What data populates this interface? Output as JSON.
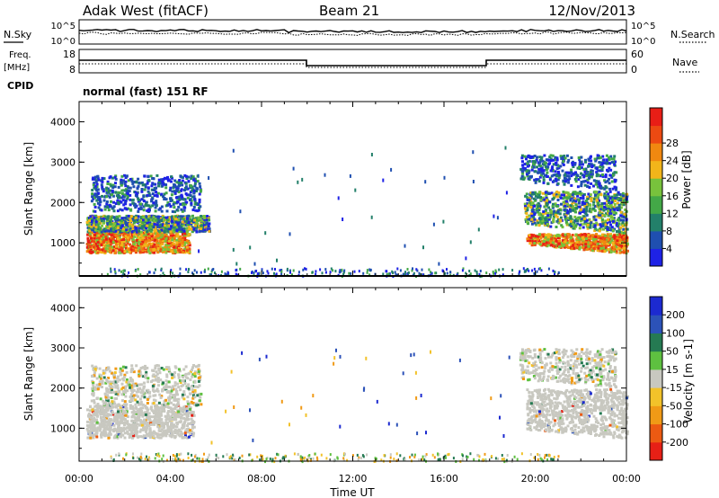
{
  "header": {
    "station": "Adak West (fitACF)",
    "beam": "Beam 21",
    "date": "12/Nov/2013"
  },
  "noise_panel": {
    "left_label": "N.Sky",
    "right_label": "N.Search",
    "left_ticks": [
      "10^5",
      "10^0"
    ],
    "right_ticks": [
      "10^5",
      "10^0"
    ]
  },
  "freq_panel": {
    "left_label_top": "Freq.",
    "left_label_unit": "[MHz]",
    "left_ticks": [
      "18",
      "8"
    ],
    "right_label": "Nave",
    "right_ticks": [
      "60",
      "0"
    ],
    "cpid_label": "CPID",
    "cpid_text": "normal (fast) 151 RF"
  },
  "chart_data": [
    {
      "type": "heatmap",
      "name": "power",
      "ylabel": "Slant Range [km]",
      "yticks": [
        "1000",
        "2000",
        "3000",
        "4000"
      ],
      "ylim": [
        180,
        4500
      ],
      "xlim_hours": [
        0,
        24
      ],
      "colorbar": {
        "label": "Power [dB]",
        "ticks": [
          "4",
          "8",
          "12",
          "16",
          "20",
          "24",
          "28"
        ],
        "colors": [
          "#1e22e6",
          "#1f4fb0",
          "#23806a",
          "#43a847",
          "#78c23c",
          "#f2b51a",
          "#f08810",
          "#ec4a12",
          "#e81e16"
        ]
      },
      "regions": [
        {
          "t0": 0.3,
          "t1": 4.8,
          "r0": 780,
          "r1": 1300,
          "level": "high"
        },
        {
          "t0": 0.3,
          "t1": 5.7,
          "r0": 1300,
          "r1": 1700,
          "level": "mid"
        },
        {
          "t0": 0.5,
          "t1": 5.3,
          "r0": 1800,
          "r1": 2700,
          "level": "low"
        },
        {
          "t0": 19.6,
          "t1": 24.0,
          "r0": 750,
          "r1": 1250,
          "level": "high"
        },
        {
          "t0": 19.5,
          "t1": 24.0,
          "r0": 1250,
          "r1": 2300,
          "level": "mid"
        },
        {
          "t0": 19.3,
          "t1": 23.5,
          "r0": 2300,
          "r1": 3200,
          "level": "low"
        }
      ]
    },
    {
      "type": "heatmap",
      "name": "velocity",
      "ylabel": "Slant Range [km]",
      "yticks": [
        "1000",
        "2000",
        "3000",
        "4000"
      ],
      "ylim": [
        180,
        4500
      ],
      "xlim_hours": [
        0,
        24
      ],
      "colorbar": {
        "label": "Velocity [m s-1]",
        "ticks": [
          "200",
          "100",
          "50",
          "15",
          "-15",
          "-50",
          "-100",
          "-200"
        ],
        "colors": [
          "#1c2ad0",
          "#2c52b8",
          "#257a52",
          "#5ec040",
          "#c8c8c0",
          "#f2c22a",
          "#f09a16",
          "#ec5a12",
          "#e62016"
        ]
      },
      "regions": [
        {
          "t0": 0.3,
          "t1": 5.0,
          "r0": 780,
          "r1": 1600,
          "level": "ground"
        },
        {
          "t0": 0.5,
          "t1": 5.3,
          "r0": 1600,
          "r1": 2600,
          "level": "ground-sparse"
        },
        {
          "t0": 19.6,
          "t1": 24.0,
          "r0": 750,
          "r1": 2000,
          "level": "ground"
        },
        {
          "t0": 19.3,
          "t1": 23.5,
          "r0": 2000,
          "r1": 3000,
          "level": "ground-sparse"
        }
      ]
    }
  ],
  "time_axis": {
    "xlabel": "Time UT",
    "ticks": [
      "00:00",
      "04:00",
      "08:00",
      "12:00",
      "16:00",
      "20:00",
      "00:00"
    ]
  }
}
